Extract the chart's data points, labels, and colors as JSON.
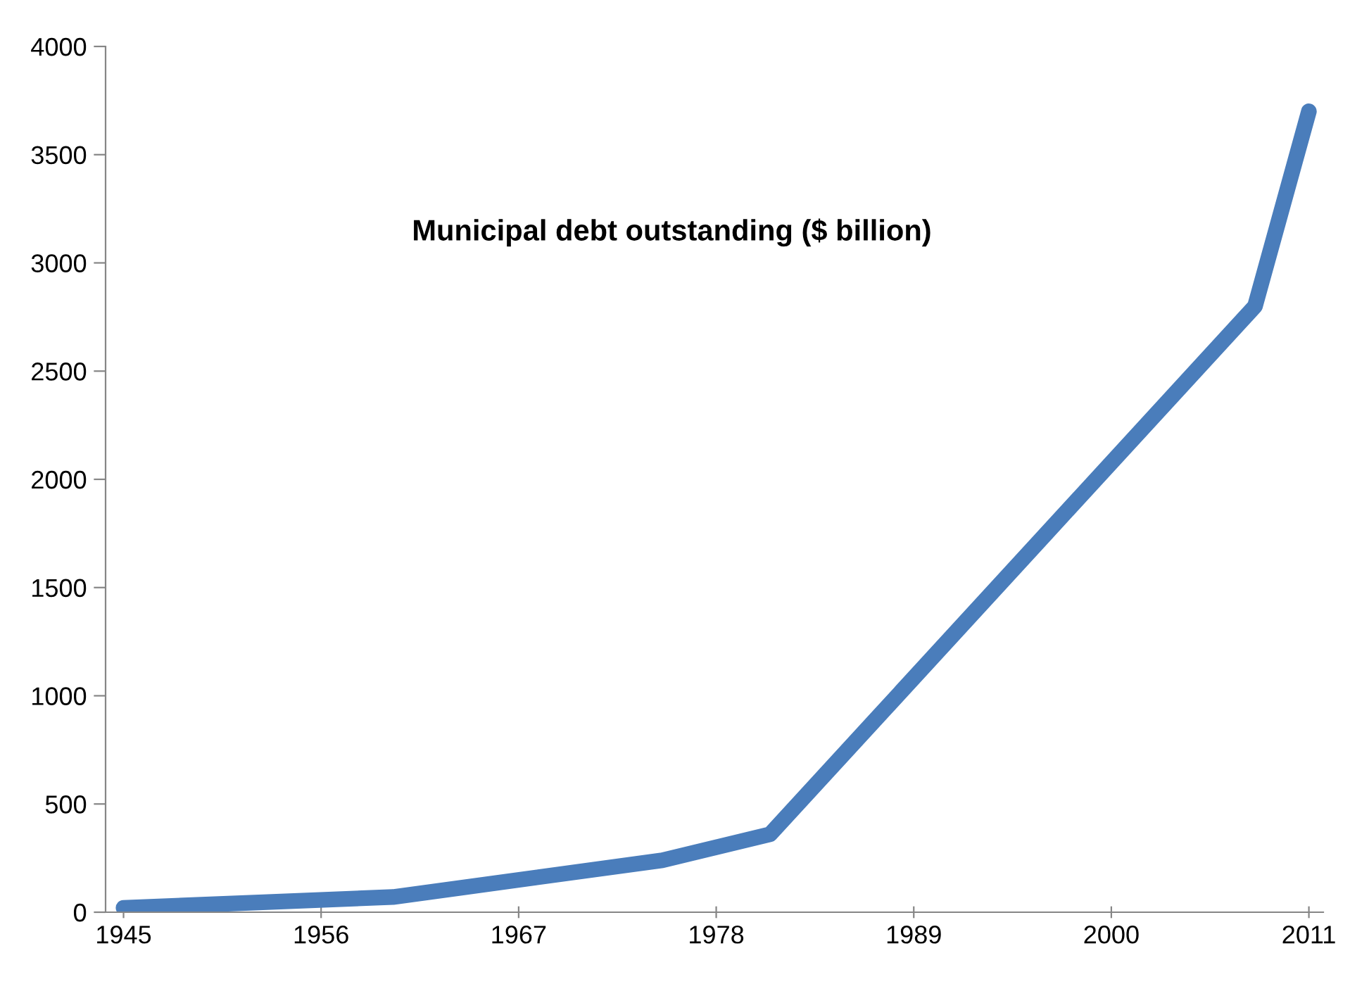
{
  "chart_data": {
    "type": "line",
    "title": "Municipal debt outstanding ($ billion)",
    "x": [
      1945,
      1960,
      1975,
      1981,
      2008,
      2011
    ],
    "series": [
      {
        "color": "#4a7dbb",
        "values": [
          20,
          70,
          240,
          360,
          2800,
          3700
        ]
      }
    ],
    "xlim": [
      1944,
      2011.8
    ],
    "xticks": [
      1945,
      1956,
      1967,
      1978,
      1989,
      2000,
      2011
    ],
    "ylim": [
      0,
      4000
    ],
    "yticks": [
      0,
      500,
      1000,
      1500,
      2000,
      2500,
      3000,
      3500,
      4000
    ],
    "grid": false,
    "legend": false,
    "line_style": "solid"
  }
}
